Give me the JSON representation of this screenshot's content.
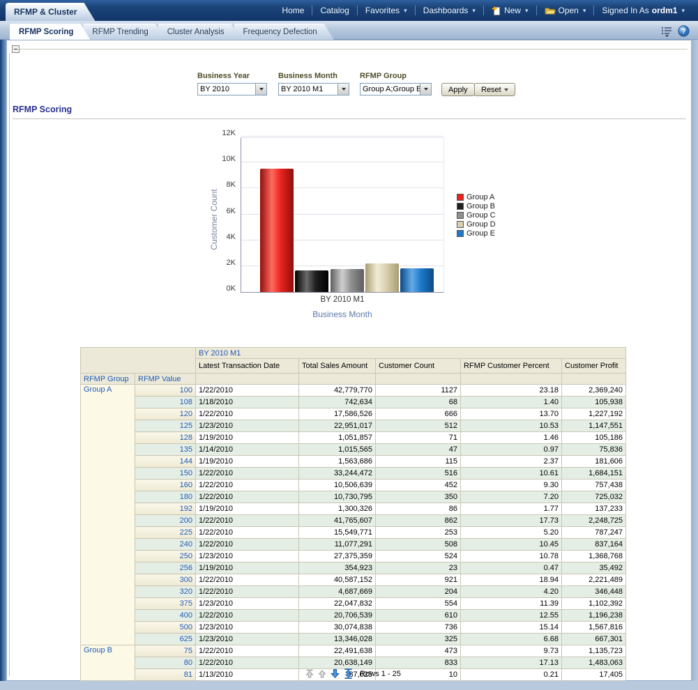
{
  "branding": {
    "dashboard_title": "RFMP & Cluster"
  },
  "top_nav": {
    "items": [
      {
        "label": "Home",
        "caret": false
      },
      {
        "label": "Catalog",
        "caret": false
      },
      {
        "label": "Favorites",
        "caret": true
      },
      {
        "label": "Dashboards",
        "caret": true
      },
      {
        "label": "New",
        "caret": true,
        "icon": "new-document-icon"
      },
      {
        "label": "Open",
        "caret": true,
        "icon": "open-folder-icon"
      }
    ],
    "signed_in_label": "Signed In As",
    "user": "ordm1"
  },
  "page_tabs": [
    {
      "label": "RFMP Scoring",
      "active": true
    },
    {
      "label": "RFMP Trending",
      "active": false
    },
    {
      "label": "Cluster Analysis",
      "active": false
    },
    {
      "label": "Frequency Defection",
      "active": false
    }
  ],
  "prompts": {
    "business_year": {
      "label": "Business Year",
      "value": "BY 2010"
    },
    "business_month": {
      "label": "Business Month",
      "value": "BY 2010 M1"
    },
    "rfmp_group": {
      "label": "RFMP Group",
      "value": "Group A;Group B"
    },
    "apply_label": "Apply",
    "reset_label": "Reset"
  },
  "section": {
    "title": "RFMP Scoring"
  },
  "chart_data": {
    "type": "bar",
    "categories": [
      "BY 2010 M1"
    ],
    "series": [
      {
        "name": "Group A",
        "values": [
          9550
        ],
        "color": "#e8231f",
        "color_light": "#ff6a5e",
        "color_dark": "#8f0f0c"
      },
      {
        "name": "Group B",
        "values": [
          1650
        ],
        "color": "#1f1f1f",
        "color_light": "#6a6a6a",
        "color_dark": "#000000"
      },
      {
        "name": "Group C",
        "values": [
          1750
        ],
        "color": "#8f8f8f",
        "color_light": "#cfcfcf",
        "color_dark": "#5e5e5e"
      },
      {
        "name": "Group D",
        "values": [
          2200
        ],
        "color": "#d9d0ae",
        "color_light": "#f2ecd6",
        "color_dark": "#a89d72"
      },
      {
        "name": "Group E",
        "values": [
          1850
        ],
        "color": "#1e7ac9",
        "color_light": "#63aae8",
        "color_dark": "#0c4a86"
      }
    ],
    "xlabel": "Business Month",
    "ylabel": "Customer Count",
    "ylim": [
      0,
      12000
    ],
    "yticks": [
      "0K",
      "2K",
      "4K",
      "6K",
      "8K",
      "10K",
      "12K"
    ],
    "legend_position": "right",
    "grid": true
  },
  "table": {
    "spanner": "BY 2010 M1",
    "row_dims": [
      "RFMP Group",
      "RFMP Value"
    ],
    "measures": [
      "Latest Transaction Date",
      "Total Sales Amount",
      "Customer Count",
      "RFMP Customer Percent",
      "Customer Profit"
    ],
    "rows": [
      [
        "Group A",
        "100",
        "1/22/2010",
        "42,779,770",
        "1127",
        "23.18",
        "2,369,240"
      ],
      [
        "",
        "108",
        "1/18/2010",
        "742,634",
        "68",
        "1.40",
        "105,938"
      ],
      [
        "",
        "120",
        "1/22/2010",
        "17,586,526",
        "666",
        "13.70",
        "1,227,192"
      ],
      [
        "",
        "125",
        "1/23/2010",
        "22,951,017",
        "512",
        "10.53",
        "1,147,551"
      ],
      [
        "",
        "128",
        "1/19/2010",
        "1,051,857",
        "71",
        "1.46",
        "105,186"
      ],
      [
        "",
        "135",
        "1/14/2010",
        "1,015,565",
        "47",
        "0.97",
        "75,836"
      ],
      [
        "",
        "144",
        "1/19/2010",
        "1,563,686",
        "115",
        "2.37",
        "181,606"
      ],
      [
        "",
        "150",
        "1/22/2010",
        "33,244,472",
        "516",
        "10.61",
        "1,684,151"
      ],
      [
        "",
        "160",
        "1/22/2010",
        "10,506,639",
        "452",
        "9.30",
        "757,438"
      ],
      [
        "",
        "180",
        "1/22/2010",
        "10,730,795",
        "350",
        "7.20",
        "725,032"
      ],
      [
        "",
        "192",
        "1/19/2010",
        "1,300,326",
        "86",
        "1.77",
        "137,233"
      ],
      [
        "",
        "200",
        "1/22/2010",
        "41,765,607",
        "862",
        "17.73",
        "2,248,725"
      ],
      [
        "",
        "225",
        "1/22/2010",
        "15,549,771",
        "253",
        "5.20",
        "787,247"
      ],
      [
        "",
        "240",
        "1/22/2010",
        "11,077,291",
        "508",
        "10.45",
        "837,164"
      ],
      [
        "",
        "250",
        "1/23/2010",
        "27,375,359",
        "524",
        "10.78",
        "1,368,768"
      ],
      [
        "",
        "256",
        "1/19/2010",
        "354,923",
        "23",
        "0.47",
        "35,492"
      ],
      [
        "",
        "300",
        "1/22/2010",
        "40,587,152",
        "921",
        "18.94",
        "2,221,489"
      ],
      [
        "",
        "320",
        "1/22/2010",
        "4,687,669",
        "204",
        "4.20",
        "346,448"
      ],
      [
        "",
        "375",
        "1/23/2010",
        "22,047,832",
        "554",
        "11.39",
        "1,102,392"
      ],
      [
        "",
        "400",
        "1/22/2010",
        "20,706,539",
        "610",
        "12.55",
        "1,196,238"
      ],
      [
        "",
        "500",
        "1/23/2010",
        "30,074,838",
        "736",
        "15.14",
        "1,567,816"
      ],
      [
        "",
        "625",
        "1/23/2010",
        "13,346,028",
        "325",
        "6.68",
        "667,301"
      ],
      [
        "Group B",
        "75",
        "1/22/2010",
        "22,491,638",
        "473",
        "9.73",
        "1,135,723"
      ],
      [
        "",
        "80",
        "1/22/2010",
        "20,638,149",
        "833",
        "17.13",
        "1,483,063"
      ],
      [
        "",
        "81",
        "1/13/2010",
        "87,025",
        "10",
        "0.21",
        "17,405"
      ]
    ]
  },
  "pager": {
    "rows_label": "Rows 1 - 25"
  },
  "colors": {
    "nav_navy": "#173d72",
    "link_blue": "#1f5bb5",
    "stripe_green": "#e5eee5",
    "header_beige": "#ece9d8",
    "group_cream": "#fdf9e7",
    "section_title": "#2a3190"
  }
}
